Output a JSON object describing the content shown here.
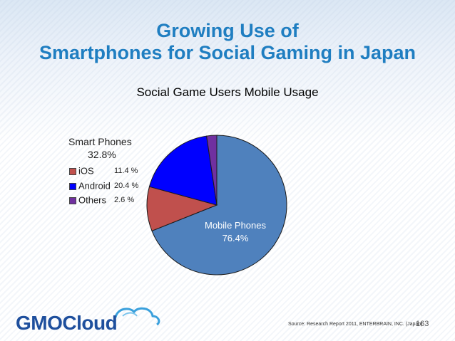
{
  "slide": {
    "title_line1": "Growing Use of",
    "title_line2": "Smartphones for Social Gaming in Japan",
    "source": "Source: Research Report 2011, ENTERBRAIN, INC. (Japan)",
    "page_number": "163",
    "logo_text_a": "GMO",
    "logo_text_b": "Cloud"
  },
  "chart_data": {
    "type": "pie",
    "title": "Social Game Users Mobile Usage",
    "slices": [
      {
        "name": "Mobile Phones",
        "value": 76.4,
        "label": "76.4%",
        "color": "#4f81bd"
      },
      {
        "name": "iOS",
        "value": 11.4,
        "label": "11.4 %",
        "color": "#c0504d"
      },
      {
        "name": "Android",
        "value": 20.4,
        "label": "20.4 %",
        "color": "#0000ff"
      },
      {
        "name": "Others",
        "value": 2.6,
        "label": "2.6 %",
        "color": "#7030a0"
      }
    ],
    "smartphones": {
      "label": "Smart Phones",
      "value_label": "32.8%"
    }
  }
}
